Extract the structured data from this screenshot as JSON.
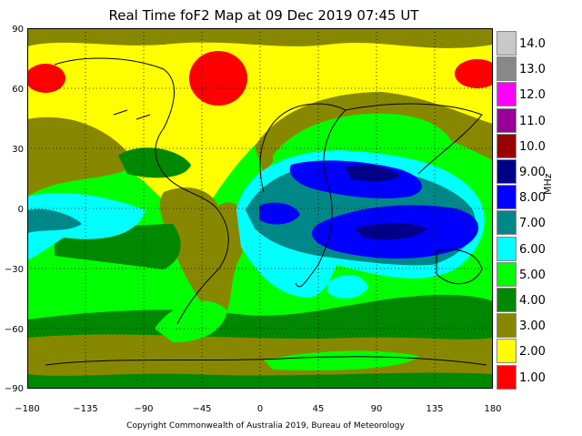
{
  "title": "Real Time foF2 Map at 09 Dec 2019 07:45 UT",
  "copyright": "Copyright Commonwealth of Australia 2019, Bureau of Meteorology",
  "unit": "MHz",
  "x_ticks": [
    "−180",
    "−135",
    "−90",
    "−45",
    "0",
    "45",
    "90",
    "135",
    "180"
  ],
  "y_ticks": [
    "90",
    "60",
    "30",
    "0",
    "−30",
    "−60",
    "−90"
  ],
  "legend": [
    {
      "label": "14.0",
      "color": "#c8c8c8"
    },
    {
      "label": "13.0",
      "color": "#888888"
    },
    {
      "label": "12.0",
      "color": "#ff00ff"
    },
    {
      "label": "11.0",
      "color": "#990099"
    },
    {
      "label": "10.0",
      "color": "#990000"
    },
    {
      "label": "9.00",
      "color": "#000088"
    },
    {
      "label": "8.00",
      "color": "#0000ff"
    },
    {
      "label": "7.00",
      "color": "#008888"
    },
    {
      "label": "6.00",
      "color": "#00ffff"
    },
    {
      "label": "5.00",
      "color": "#00ff00"
    },
    {
      "label": "4.00",
      "color": "#008800"
    },
    {
      "label": "3.00",
      "color": "#888800"
    },
    {
      "label": "2.00",
      "color": "#ffff00"
    },
    {
      "label": "1.00",
      "color": "#ff0000"
    }
  ]
}
